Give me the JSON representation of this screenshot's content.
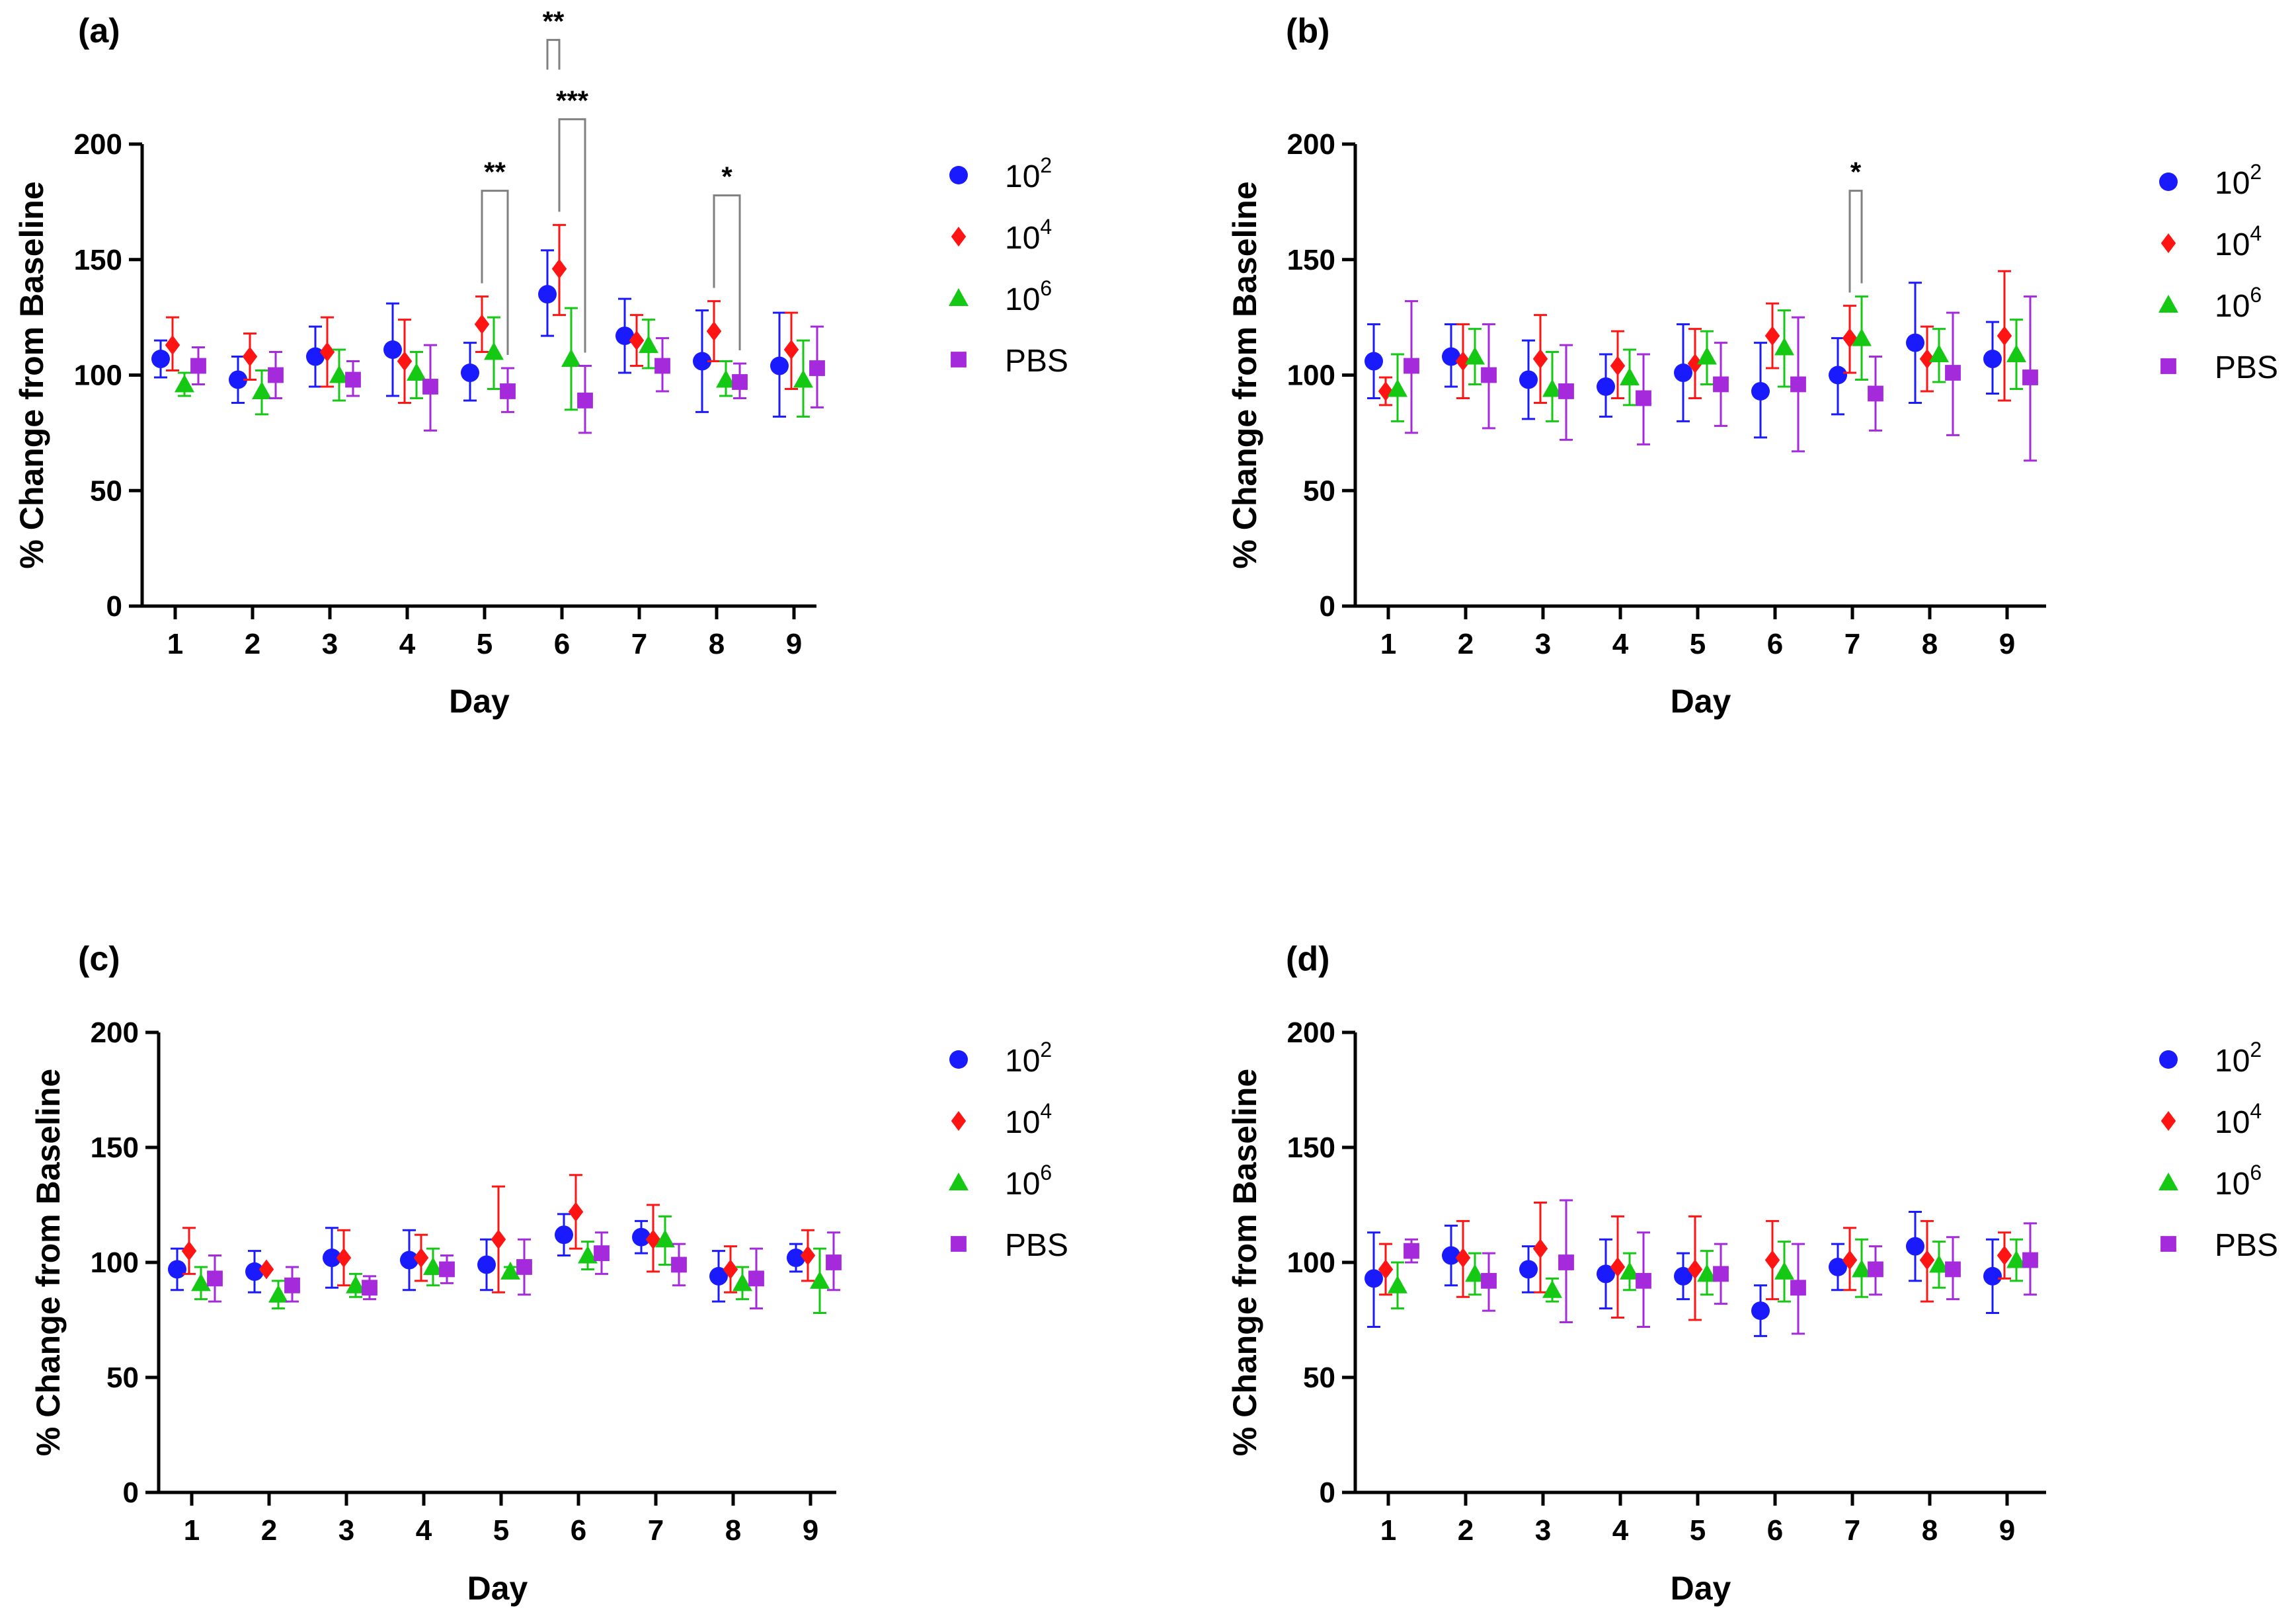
{
  "colors": {
    "10^2": "#1a1aff",
    "10^4": "#ff1414",
    "10^6": "#14c814",
    "PBS": "#a52adc",
    "axis": "#000000",
    "bracket": "#808080"
  },
  "legend": [
    {
      "key": "10^2",
      "base": "10",
      "sup": "2",
      "marker": "circle"
    },
    {
      "key": "10^4",
      "base": "10",
      "sup": "4",
      "marker": "diamond"
    },
    {
      "key": "10^6",
      "base": "10",
      "sup": "6",
      "marker": "triangle"
    },
    {
      "key": "PBS",
      "base": "PBS",
      "sup": "",
      "marker": "square"
    }
  ],
  "chart_data": [
    {
      "panel": "(a)",
      "type": "scatter",
      "xlabel": "Day",
      "ylabel": "% Change from Baseline",
      "categories": [
        "1",
        "2",
        "3",
        "4",
        "5",
        "6",
        "7",
        "8",
        "9"
      ],
      "ylim": [
        0,
        200
      ],
      "yticks": [
        "0",
        "50",
        "100",
        "150",
        "200"
      ],
      "series": [
        {
          "name": "10^2",
          "values": [
            107,
            98,
            108,
            111,
            101,
            135,
            117,
            106,
            104
          ],
          "lower": [
            99,
            88,
            95,
            91,
            89,
            117,
            101,
            84,
            82
          ],
          "upper": [
            115,
            108,
            121,
            131,
            114,
            154,
            133,
            128,
            127
          ]
        },
        {
          "name": "10^4",
          "values": [
            113,
            108,
            110,
            106,
            122,
            146,
            115,
            119,
            111
          ],
          "lower": [
            102,
            98,
            95,
            88,
            110,
            126,
            104,
            106,
            94
          ],
          "upper": [
            125,
            118,
            125,
            124,
            134,
            165,
            126,
            132,
            127
          ]
        },
        {
          "name": "10^6",
          "values": [
            96,
            93,
            100,
            101,
            110,
            107,
            113,
            98,
            98
          ],
          "lower": [
            91,
            83,
            89,
            90,
            94,
            85,
            103,
            91,
            82
          ],
          "upper": [
            101,
            102,
            111,
            110,
            125,
            129,
            124,
            106,
            115
          ]
        },
        {
          "name": "PBS",
          "values": [
            104,
            100,
            98,
            95,
            93,
            89,
            104,
            97,
            103
          ],
          "lower": [
            96,
            90,
            91,
            76,
            84,
            75,
            93,
            90,
            86
          ],
          "upper": [
            112,
            110,
            106,
            113,
            103,
            104,
            116,
            105,
            121
          ]
        }
      ],
      "significance": [
        {
          "label": "**",
          "from": "10^4",
          "to": "PBS",
          "category": "5"
        },
        {
          "label": "***",
          "from": "10^4",
          "to": "PBS",
          "category": "6"
        },
        {
          "label": "**",
          "from": "10^2",
          "to": "10^4",
          "category": "6"
        },
        {
          "label": "*",
          "from": "10^4",
          "to": "PBS",
          "category": "8"
        }
      ]
    },
    {
      "panel": "(b)",
      "type": "scatter",
      "xlabel": "Day",
      "ylabel": "% Change from Baseline",
      "categories": [
        "1",
        "2",
        "3",
        "4",
        "5",
        "6",
        "7",
        "8",
        "9"
      ],
      "ylim": [
        0,
        200
      ],
      "yticks": [
        "0",
        "50",
        "100",
        "150",
        "200"
      ],
      "series": [
        {
          "name": "10^2",
          "values": [
            106,
            108,
            98,
            95,
            101,
            93,
            100,
            114,
            107
          ],
          "lower": [
            90,
            95,
            81,
            82,
            80,
            73,
            83,
            88,
            92
          ],
          "upper": [
            122,
            122,
            115,
            109,
            122,
            114,
            116,
            140,
            123
          ]
        },
        {
          "name": "10^4",
          "values": [
            93,
            106,
            107,
            104,
            105,
            117,
            116,
            107,
            117
          ],
          "lower": [
            87,
            90,
            88,
            90,
            90,
            103,
            101,
            93,
            89
          ],
          "upper": [
            99,
            122,
            126,
            119,
            120,
            131,
            130,
            121,
            145
          ]
        },
        {
          "name": "10^6",
          "values": [
            94,
            108,
            94,
            99,
            108,
            112,
            116,
            109,
            109
          ],
          "lower": [
            80,
            96,
            80,
            87,
            96,
            95,
            98,
            97,
            94
          ],
          "upper": [
            109,
            120,
            110,
            111,
            119,
            128,
            134,
            120,
            124
          ]
        },
        {
          "name": "PBS",
          "values": [
            104,
            100,
            93,
            90,
            96,
            96,
            92,
            101,
            99
          ],
          "lower": [
            75,
            77,
            72,
            70,
            78,
            67,
            76,
            74,
            63
          ],
          "upper": [
            132,
            122,
            113,
            109,
            114,
            125,
            108,
            127,
            134
          ]
        }
      ],
      "significance": [
        {
          "label": "*",
          "from": "10^4",
          "to": "10^6",
          "category": "7"
        }
      ]
    },
    {
      "panel": "(c)",
      "type": "scatter",
      "xlabel": "Day",
      "ylabel": "% Change from Baseline",
      "categories": [
        "1",
        "2",
        "3",
        "4",
        "5",
        "6",
        "7",
        "8",
        "9"
      ],
      "ylim": [
        0,
        200
      ],
      "yticks": [
        "0",
        "50",
        "100",
        "150",
        "200"
      ],
      "series": [
        {
          "name": "10^2",
          "values": [
            97,
            96,
            102,
            101,
            99,
            112,
            111,
            94,
            102
          ],
          "lower": [
            88,
            87,
            89,
            88,
            88,
            103,
            104,
            83,
            96
          ],
          "upper": [
            106,
            105,
            115,
            114,
            110,
            121,
            118,
            105,
            108
          ]
        },
        {
          "name": "10^4",
          "values": [
            105,
            97,
            102,
            102,
            110,
            122,
            110,
            97,
            103
          ],
          "lower": [
            95,
            97,
            90,
            92,
            87,
            106,
            96,
            87,
            92
          ],
          "upper": [
            115,
            97,
            114,
            112,
            133,
            138,
            125,
            107,
            114
          ]
        },
        {
          "name": "10^6",
          "values": [
            91,
            86,
            90,
            98,
            96,
            103,
            110,
            91,
            92
          ],
          "lower": [
            84,
            80,
            85,
            90,
            95,
            97,
            99,
            84,
            78
          ],
          "upper": [
            98,
            92,
            95,
            106,
            98,
            109,
            120,
            98,
            106
          ]
        },
        {
          "name": "PBS",
          "values": [
            93,
            90,
            89,
            97,
            98,
            104,
            99,
            93,
            100
          ],
          "lower": [
            83,
            83,
            84,
            91,
            86,
            95,
            90,
            80,
            88
          ],
          "upper": [
            103,
            98,
            94,
            103,
            110,
            113,
            108,
            106,
            113
          ]
        }
      ],
      "significance": []
    },
    {
      "panel": "(d)",
      "type": "scatter",
      "xlabel": "Day",
      "ylabel": "% Change from Baseline",
      "categories": [
        "1",
        "2",
        "3",
        "4",
        "5",
        "6",
        "7",
        "8",
        "9"
      ],
      "ylim": [
        0,
        200
      ],
      "yticks": [
        "0",
        "50",
        "100",
        "150",
        "200"
      ],
      "series": [
        {
          "name": "10^2",
          "values": [
            93,
            103,
            97,
            95,
            94,
            79,
            98,
            107,
            94
          ],
          "lower": [
            72,
            90,
            87,
            80,
            84,
            68,
            88,
            92,
            78
          ],
          "upper": [
            113,
            116,
            107,
            110,
            104,
            90,
            108,
            122,
            110
          ]
        },
        {
          "name": "10^4",
          "values": [
            97,
            102,
            106,
            98,
            97,
            101,
            101,
            101,
            103
          ],
          "lower": [
            86,
            85,
            87,
            76,
            75,
            84,
            88,
            83,
            93
          ],
          "upper": [
            108,
            118,
            126,
            120,
            120,
            118,
            115,
            118,
            113
          ]
        },
        {
          "name": "10^6",
          "values": [
            90,
            95,
            88,
            96,
            95,
            96,
            97,
            99,
            101
          ],
          "lower": [
            80,
            86,
            83,
            88,
            86,
            83,
            85,
            89,
            92
          ],
          "upper": [
            100,
            104,
            93,
            104,
            105,
            109,
            110,
            109,
            110
          ]
        },
        {
          "name": "PBS",
          "values": [
            105,
            92,
            100,
            92,
            95,
            89,
            97,
            97,
            101
          ],
          "lower": [
            100,
            79,
            74,
            72,
            82,
            69,
            86,
            84,
            86
          ],
          "upper": [
            110,
            104,
            127,
            113,
            108,
            108,
            107,
            111,
            117
          ]
        }
      ],
      "significance": []
    }
  ]
}
